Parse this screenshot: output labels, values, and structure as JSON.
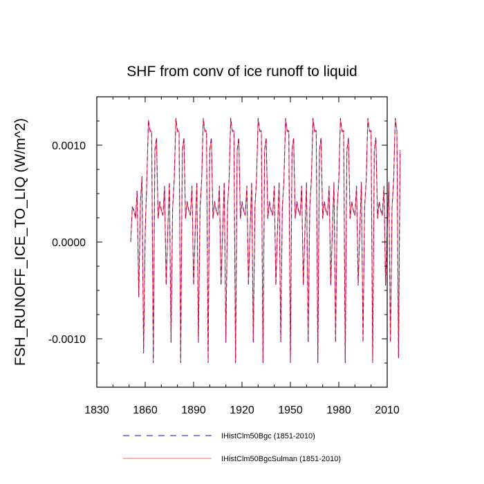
{
  "chart_data": {
    "type": "line",
    "title": "SHF from conv of ice runoff to liquid",
    "xlabel": "",
    "ylabel": "FSH_RUNOFF_ICE_TO_LIQ  (W/m^2)",
    "xlim": [
      1830,
      2010
    ],
    "ylim": [
      -0.0015,
      0.0015
    ],
    "xticks": [
      1830,
      1860,
      1890,
      1920,
      1950,
      1980,
      2010
    ],
    "xtick_labels": [
      "1830",
      "1860",
      "1890",
      "1920",
      "1950",
      "1980",
      "2010"
    ],
    "yticks": [
      -0.001,
      0.0,
      0.001
    ],
    "ytick_labels": [
      "-0.0010",
      "0.0000",
      "0.0010"
    ],
    "grid": false,
    "legend_position": "bottom",
    "x_start": 1851,
    "x_step": 1,
    "series": [
      {
        "name": "IHistClm50Bgc (1851-2010)",
        "color": "#0000ff",
        "dash": "dashed",
        "values": [
          0.0,
          0.00036,
          0.00033,
          0.00025,
          0.00053,
          -0.00057,
          0.0004,
          0.00068,
          -0.00115,
          0.0001,
          0.00064,
          0.00126,
          0.00115,
          0.00115,
          -0.00125,
          0.00095,
          0.00108,
          0.00024,
          0.00042,
          0.00033,
          0.00028,
          0.00058,
          -0.00045,
          0.00012,
          0.00062,
          -0.00104,
          0.00036,
          0.00065,
          0.00128,
          0.00115,
          0.00115,
          -0.00125,
          0.00095,
          0.00108,
          0.00024,
          0.00042,
          0.00033,
          0.00028,
          0.00058,
          -0.00045,
          0.00012,
          0.00062,
          -0.00104,
          0.00036,
          0.00065,
          0.00128,
          0.00115,
          0.00115,
          -0.00125,
          0.00095,
          0.00108,
          0.00024,
          0.00042,
          0.00033,
          0.00028,
          0.00058,
          -0.00045,
          0.00012,
          0.00062,
          -0.00104,
          0.00036,
          0.00065,
          0.00128,
          0.00115,
          0.00115,
          -0.00125,
          0.00095,
          0.00108,
          0.00024,
          0.00042,
          0.00033,
          0.00028,
          0.00058,
          -0.00045,
          0.00012,
          0.00062,
          -0.00104,
          0.00036,
          0.00065,
          0.00128,
          0.00115,
          0.00115,
          -0.00125,
          0.00095,
          0.00108,
          0.00024,
          0.00042,
          0.00033,
          0.00028,
          0.00058,
          -0.00045,
          0.00012,
          0.00062,
          -0.00104,
          0.00036,
          0.00065,
          0.00128,
          0.00115,
          0.00115,
          -0.00125,
          0.00095,
          0.00108,
          0.00024,
          0.00042,
          0.00033,
          0.00028,
          0.00058,
          -0.00045,
          0.00012,
          0.00062,
          -0.00104,
          0.00036,
          0.00065,
          0.00128,
          0.00115,
          0.00115,
          -0.00125,
          0.00095,
          0.00108,
          0.00024,
          0.00042,
          0.00033,
          0.00028,
          0.00058,
          -0.00045,
          0.00012,
          0.00062,
          -0.00104,
          0.00036,
          0.00065,
          0.00128,
          0.00115,
          0.00115,
          -0.00125,
          0.00095,
          0.00108,
          0.00024,
          0.00042,
          0.00033,
          0.00028,
          0.00058,
          -0.00045,
          0.00012,
          0.00062,
          -0.00104,
          0.00036,
          0.00065,
          0.00128,
          0.00115,
          0.00115,
          -0.00125,
          0.00095,
          0.00108,
          0.00024,
          0.00042,
          0.00033,
          0.00028,
          0.00058,
          -0.00045,
          0.00012,
          0.00062,
          -0.00104,
          0.00036,
          0.00065,
          0.00128,
          0.00115,
          -0.0012,
          0.00095
        ]
      },
      {
        "name": "IHistClm50BgcSulman (1851-2010)",
        "color": "#ff0000",
        "dash": "solid",
        "values": [
          0.0,
          0.00035,
          0.00032,
          0.00024,
          0.00052,
          -0.00056,
          0.00039,
          0.00067,
          -0.00114,
          0.0001,
          0.00063,
          0.00126,
          0.00114,
          0.00114,
          -0.00124,
          0.00094,
          0.00107,
          0.00024,
          0.00041,
          0.00032,
          0.00027,
          0.00057,
          -0.00044,
          0.00012,
          0.00061,
          -0.00103,
          0.00035,
          0.00064,
          0.00127,
          0.00114,
          0.00114,
          -0.00124,
          0.00094,
          0.00107,
          0.00024,
          0.00041,
          0.00032,
          0.00027,
          0.00057,
          -0.00044,
          0.00012,
          0.00061,
          -0.00103,
          0.00035,
          0.00064,
          0.00127,
          0.00114,
          0.00114,
          -0.00124,
          0.00094,
          0.00107,
          0.00024,
          0.00041,
          0.00032,
          0.00027,
          0.00057,
          -0.00044,
          0.00012,
          0.00061,
          -0.00103,
          0.00035,
          0.00064,
          0.00127,
          0.00114,
          0.00114,
          -0.00124,
          0.00094,
          0.00107,
          0.00024,
          0.00041,
          0.00032,
          0.00027,
          0.00057,
          -0.00044,
          0.00012,
          0.00061,
          -0.00103,
          0.00035,
          0.00064,
          0.00127,
          0.00114,
          0.00114,
          -0.00124,
          0.00094,
          0.00107,
          0.00024,
          0.00041,
          0.00032,
          0.00027,
          0.00057,
          -0.00044,
          0.00012,
          0.00061,
          -0.00103,
          0.00035,
          0.00064,
          0.00127,
          0.00114,
          0.00114,
          -0.00124,
          0.00094,
          0.00107,
          0.00024,
          0.00041,
          0.00032,
          0.00027,
          0.00057,
          -0.00044,
          0.00012,
          0.00061,
          -0.00103,
          0.00035,
          0.00064,
          0.00127,
          0.00114,
          0.00114,
          -0.00124,
          0.00094,
          0.00107,
          0.00024,
          0.00041,
          0.00032,
          0.00027,
          0.00057,
          -0.00044,
          0.00012,
          0.00061,
          -0.00103,
          0.00035,
          0.00064,
          0.00127,
          0.00114,
          0.00114,
          -0.00124,
          0.00094,
          0.00107,
          0.00024,
          0.00041,
          0.00032,
          0.00027,
          0.00057,
          -0.00044,
          0.00012,
          0.00061,
          -0.00103,
          0.00035,
          0.00064,
          0.00127,
          0.00114,
          0.00114,
          -0.00124,
          0.00094,
          0.00107,
          0.00024,
          0.00041,
          0.00032,
          0.00027,
          0.00057,
          -0.00044,
          0.00012,
          0.00061,
          -0.00103,
          0.00035,
          0.00064,
          0.00127,
          0.00114,
          -0.00119,
          0.00094
        ]
      }
    ]
  }
}
